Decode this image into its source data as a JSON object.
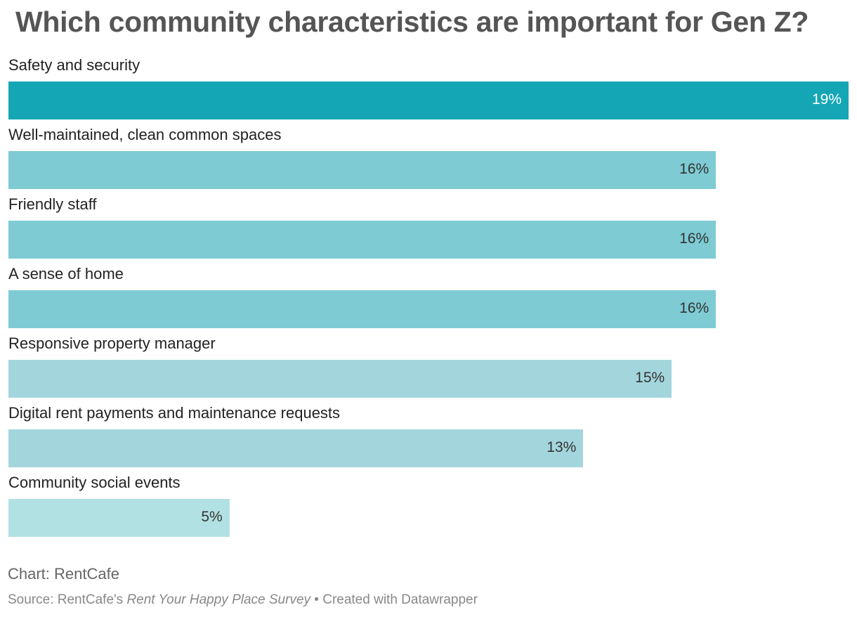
{
  "chart_data": {
    "type": "bar",
    "orientation": "horizontal",
    "title": "Which community characteristics are important for Gen Z?",
    "categories": [
      "Safety and security",
      "Well-maintained, clean common spaces",
      "Friendly staff",
      "A sense of home",
      "Responsive property manager",
      "Digital rent payments and maintenance requests",
      "Community social events"
    ],
    "values": [
      19,
      16,
      16,
      16,
      15,
      13,
      5
    ],
    "labels": [
      "19%",
      "16%",
      "16%",
      "16%",
      "15%",
      "13%",
      "5%"
    ],
    "colors": [
      "#15a6b5",
      "#7ecbd4",
      "#7ecbd4",
      "#7ecbd4",
      "#a3d6dc",
      "#a3d6dc",
      "#b2e1e3"
    ],
    "label_colors": [
      "#ffffff",
      "#333333",
      "#333333",
      "#333333",
      "#333333",
      "#333333",
      "#333333"
    ],
    "xlim": [
      0,
      19
    ],
    "xlabel": "",
    "ylabel": "",
    "grid": false
  },
  "footer": {
    "notes": "Chart: RentCafe",
    "source_prefix": "Source: RentCafe's ",
    "source_title": "Rent Your Happy Place Survey",
    "source_suffix": " • Created with Datawrapper"
  }
}
